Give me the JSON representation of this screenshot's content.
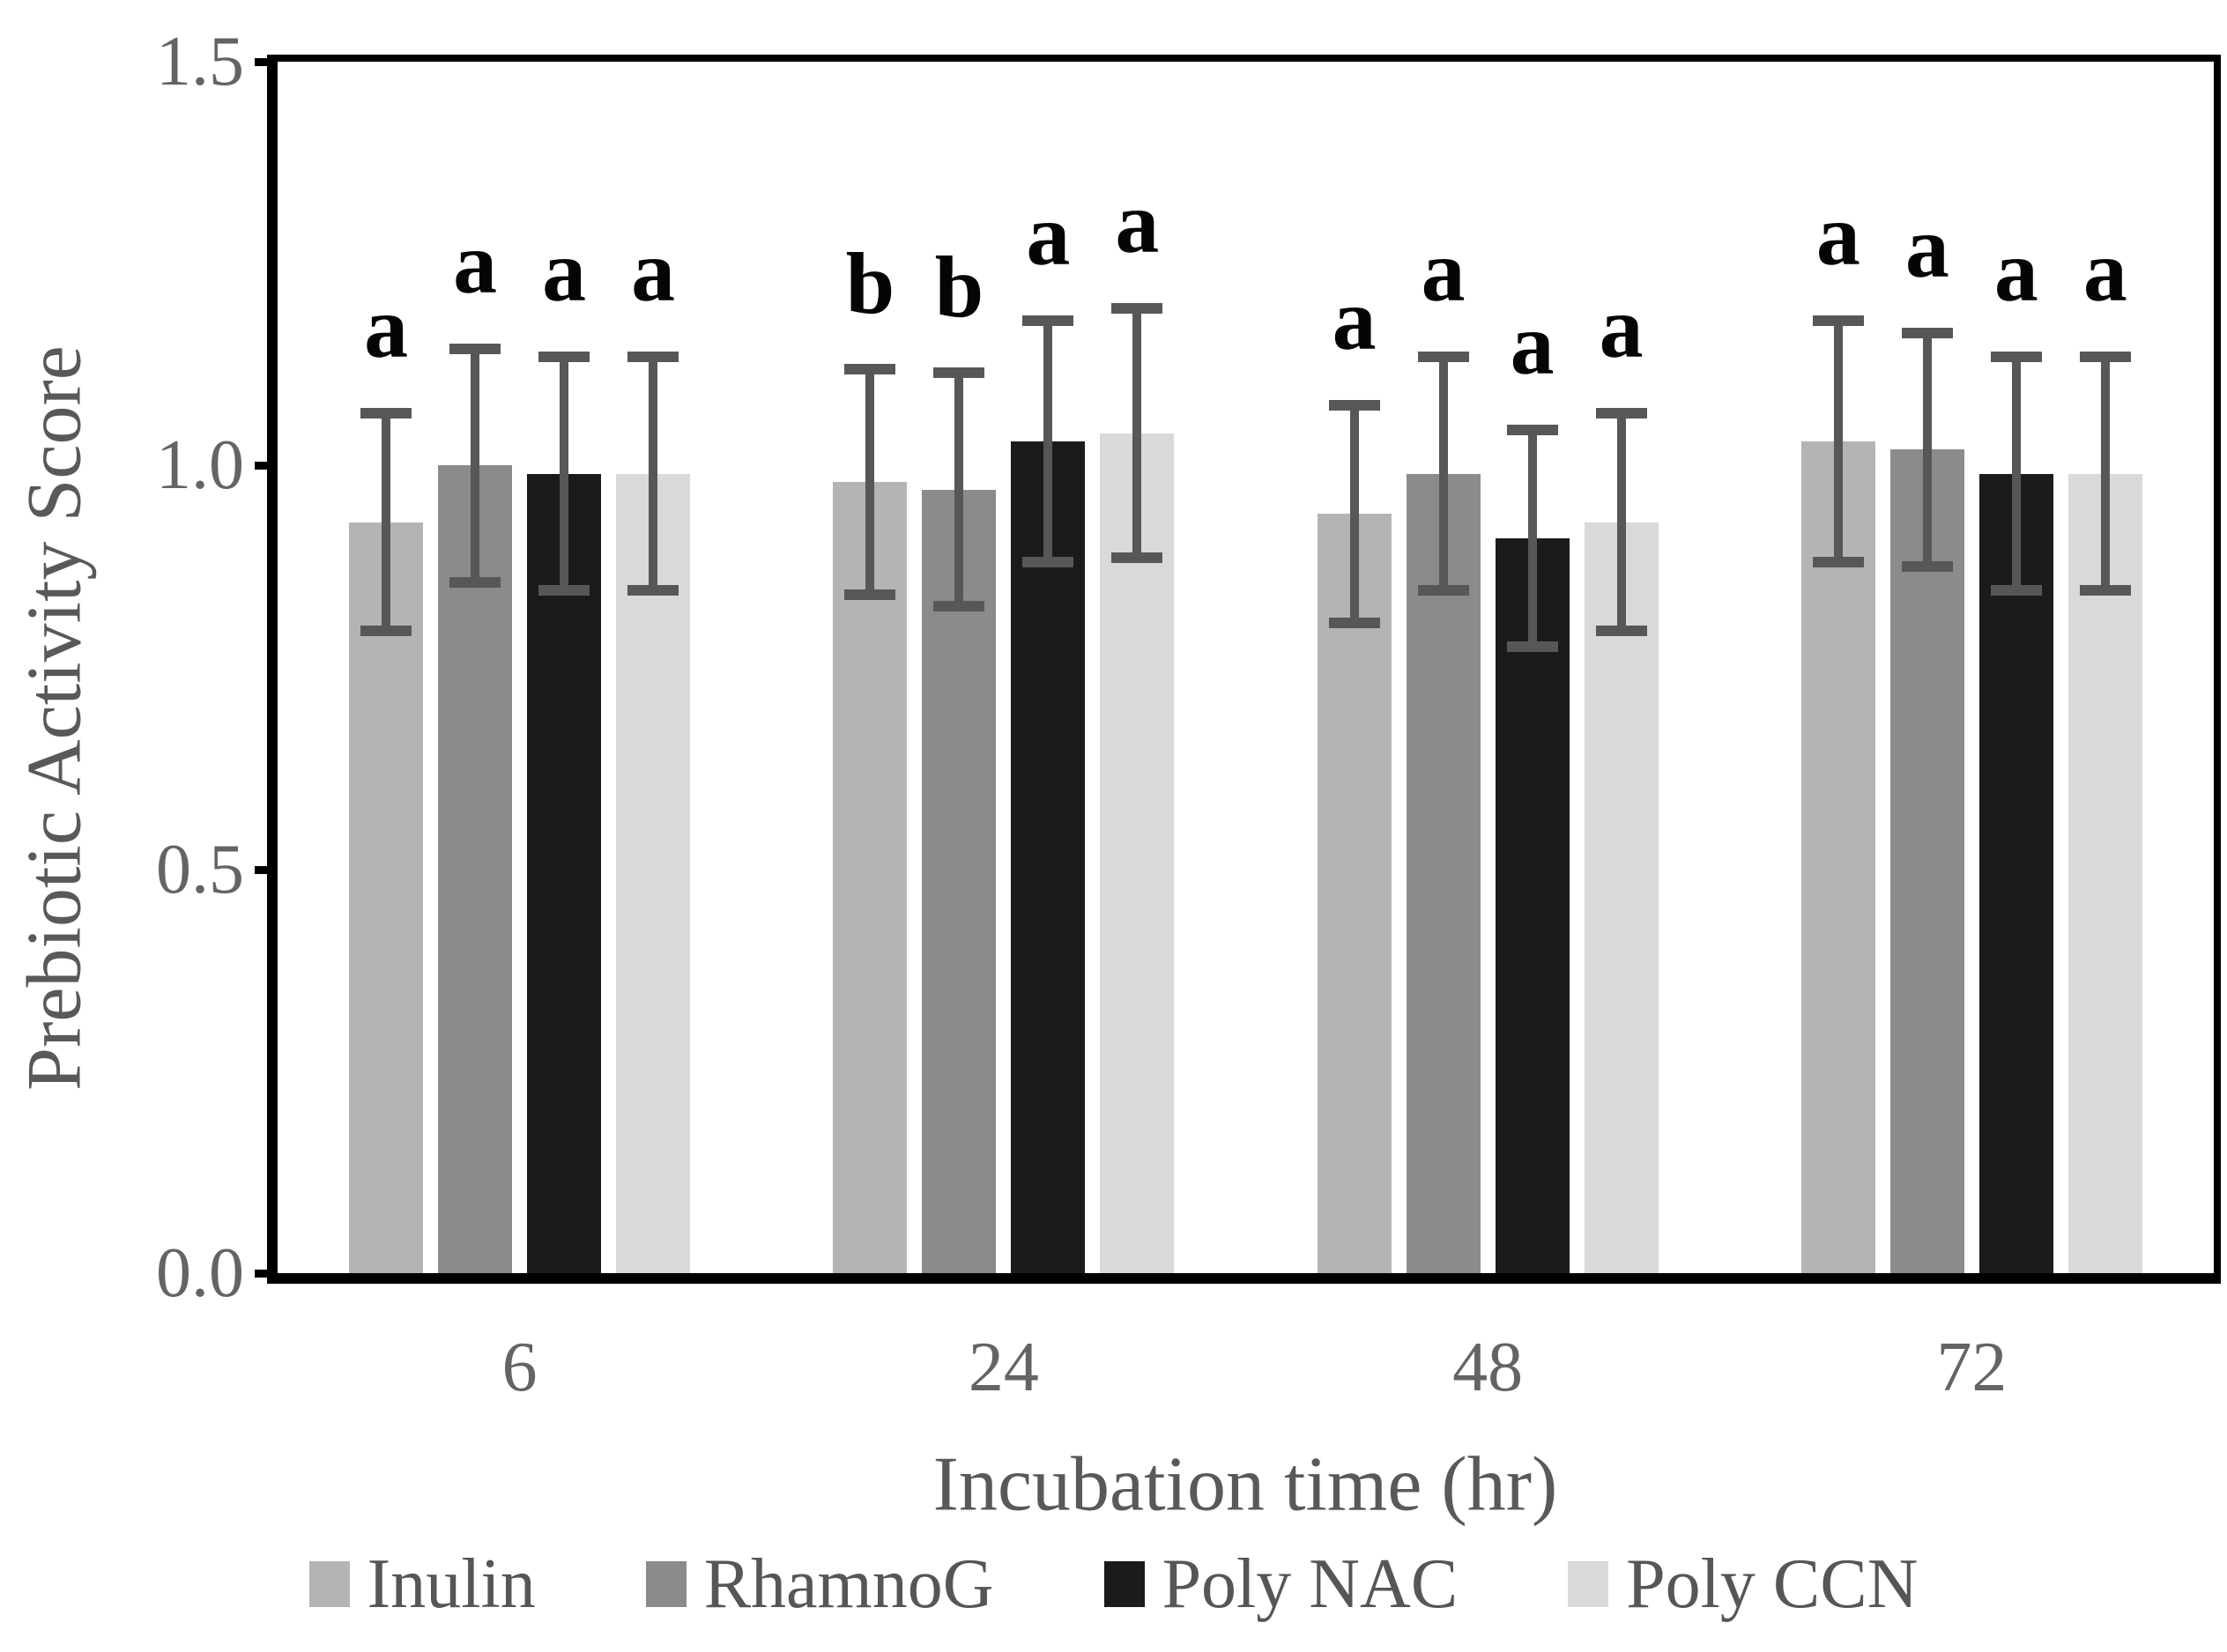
{
  "chart_data": {
    "type": "bar",
    "title": "",
    "xlabel": "Incubation time (hr)",
    "ylabel": "Prebiotic Activity Score",
    "categories": [
      "6",
      "24",
      "48",
      "72"
    ],
    "series": [
      {
        "name": "Inulin",
        "color": "#b4b4b4",
        "values": [
          0.93,
          0.98,
          0.94,
          1.03
        ],
        "errors": [
          0.14,
          0.145,
          0.14,
          0.155
        ],
        "letters": [
          "a",
          "b",
          "a",
          "a"
        ]
      },
      {
        "name": "RhamnoG",
        "color": "#8b8b8b",
        "values": [
          1.0,
          0.97,
          0.99,
          1.02
        ],
        "errors": [
          0.15,
          0.15,
          0.15,
          0.15
        ],
        "letters": [
          "a",
          "b",
          "a",
          "a"
        ]
      },
      {
        "name": "Poly NAC",
        "color": "#1b1b1b",
        "values": [
          0.99,
          1.03,
          0.91,
          0.99
        ],
        "errors": [
          0.15,
          0.155,
          0.14,
          0.15
        ],
        "letters": [
          "a",
          "a",
          "a",
          "a"
        ]
      },
      {
        "name": "Poly CCN",
        "color": "#d9d9d9",
        "values": [
          0.99,
          1.04,
          0.93,
          0.99
        ],
        "errors": [
          0.15,
          0.16,
          0.14,
          0.15
        ],
        "letters": [
          "a",
          "a",
          "a",
          "a"
        ]
      }
    ],
    "ylim": [
      0.0,
      1.5
    ],
    "yticks": [
      0.0,
      0.5,
      1.0,
      1.5
    ],
    "ytick_labels": [
      "0.0",
      "0.5",
      "1.0",
      "1.5"
    ],
    "grid": false,
    "legend_position": "bottom",
    "error_bar_color": "#575757",
    "axis_color": "#000000",
    "tick_label_color": "#646464",
    "axis_title_color": "#595959"
  }
}
